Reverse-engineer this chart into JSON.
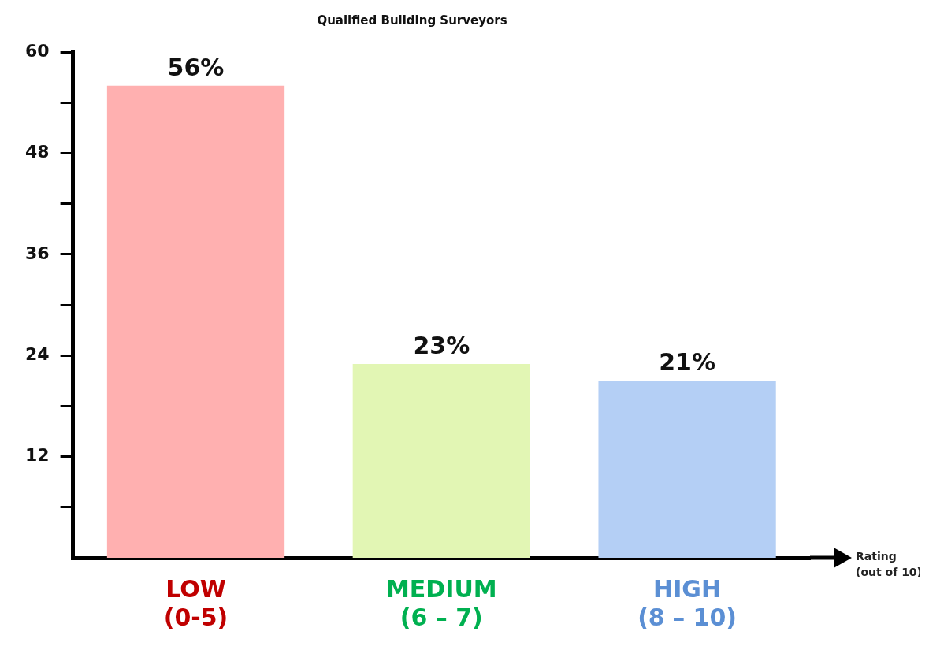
{
  "chart_data": {
    "type": "bar",
    "title": "Qualified Building Surveyors",
    "xlabel": "Rating\n(out of 10)",
    "categories": [
      "LOW\n(0-5)",
      "MEDIUM\n(6 – 7)",
      "HIGH\n(8 – 10)"
    ],
    "values": [
      56,
      23,
      21
    ],
    "colors": [
      "#ffb0b0",
      "#e2f6b4",
      "#b4cff5"
    ],
    "value_labels": [
      "56%",
      "23%",
      "21%"
    ],
    "ylim": [
      0,
      60
    ],
    "yticks": [
      {
        "value": 6,
        "label": null
      },
      12,
      {
        "value": 18,
        "label": null
      },
      24,
      {
        "value": 30,
        "label": null
      },
      36,
      {
        "value": 42,
        "label": null
      },
      48,
      {
        "value": 54,
        "label": null
      },
      60
    ],
    "grid": false,
    "legend": false
  }
}
